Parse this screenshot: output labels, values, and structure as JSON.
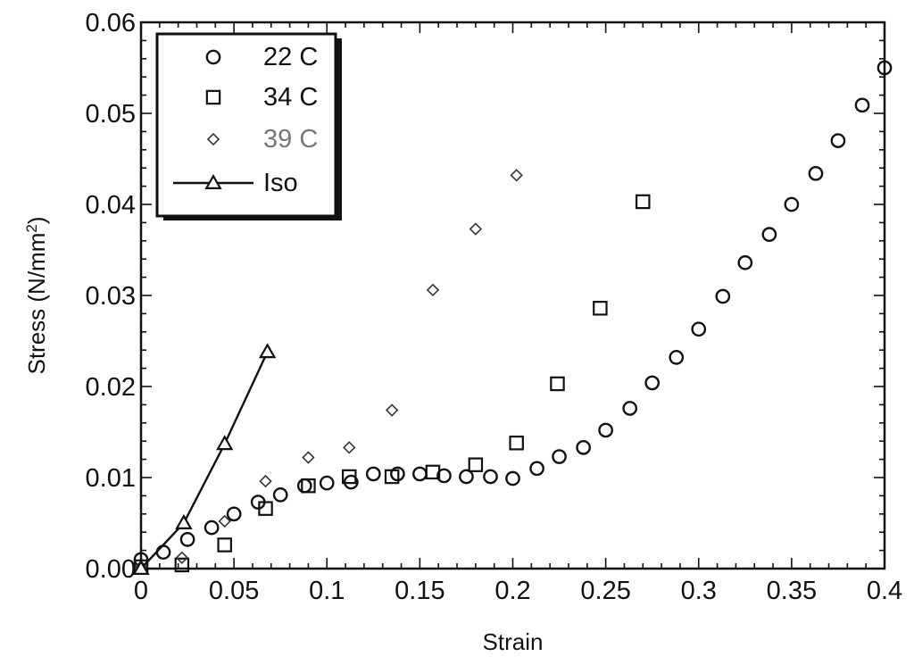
{
  "chart_data": {
    "type": "scatter",
    "title": "",
    "xlabel": "Strain",
    "ylabel_main": "Stress  (N/mm",
    "ylabel_sup": "2",
    "ylabel_close": ")",
    "xlim": [
      0,
      0.4
    ],
    "ylim": [
      0,
      0.06
    ],
    "x_ticks": [
      0,
      0.05,
      0.1,
      0.15,
      0.2,
      0.25,
      0.3,
      0.35,
      0.4
    ],
    "x_tick_labels": [
      "0",
      "0.05",
      "0.1",
      "0.15",
      "0.2",
      "0.25",
      "0.3",
      "0.35",
      "0.4"
    ],
    "y_ticks": [
      0,
      0.01,
      0.02,
      0.03,
      0.04,
      0.05,
      0.06
    ],
    "y_tick_labels": [
      "0.00",
      "0.01",
      "0.02",
      "0.03",
      "0.04",
      "0.05",
      "0.06"
    ],
    "grid": false,
    "legend_position": "top-left",
    "series": [
      {
        "name": "22 C",
        "marker": "circle",
        "color": "#111111",
        "points": [
          [
            0.0,
            0.001
          ],
          [
            0.012,
            0.0018
          ],
          [
            0.025,
            0.0032
          ],
          [
            0.038,
            0.0045
          ],
          [
            0.05,
            0.006
          ],
          [
            0.063,
            0.0073
          ],
          [
            0.075,
            0.0081
          ],
          [
            0.088,
            0.0091
          ],
          [
            0.1,
            0.0094
          ],
          [
            0.113,
            0.0095
          ],
          [
            0.125,
            0.0104
          ],
          [
            0.138,
            0.0104
          ],
          [
            0.15,
            0.0104
          ],
          [
            0.163,
            0.0102
          ],
          [
            0.175,
            0.0101
          ],
          [
            0.188,
            0.0101
          ],
          [
            0.2,
            0.0099
          ],
          [
            0.213,
            0.011
          ],
          [
            0.225,
            0.0123
          ],
          [
            0.238,
            0.0133
          ],
          [
            0.25,
            0.0152
          ],
          [
            0.263,
            0.0176
          ],
          [
            0.275,
            0.0204
          ],
          [
            0.288,
            0.0232
          ],
          [
            0.3,
            0.0263
          ],
          [
            0.313,
            0.0299
          ],
          [
            0.325,
            0.0336
          ],
          [
            0.338,
            0.0367
          ],
          [
            0.35,
            0.04
          ],
          [
            0.363,
            0.0434
          ],
          [
            0.375,
            0.047
          ],
          [
            0.388,
            0.0509
          ],
          [
            0.4,
            0.055
          ]
        ]
      },
      {
        "name": "34 C",
        "marker": "square",
        "color": "#111111",
        "points": [
          [
            0.0,
            0.0002
          ],
          [
            0.022,
            0.0004
          ],
          [
            0.045,
            0.0026
          ],
          [
            0.067,
            0.0066
          ],
          [
            0.09,
            0.0091
          ],
          [
            0.112,
            0.0101
          ],
          [
            0.135,
            0.0101
          ],
          [
            0.157,
            0.0106
          ],
          [
            0.18,
            0.0114
          ],
          [
            0.202,
            0.0138
          ],
          [
            0.224,
            0.0203
          ],
          [
            0.247,
            0.0286
          ],
          [
            0.27,
            0.0403
          ]
        ]
      },
      {
        "name": "39 C",
        "marker": "diamond",
        "color": "#111111",
        "points": [
          [
            0.0,
            0.0002
          ],
          [
            0.022,
            0.0012
          ],
          [
            0.045,
            0.0052
          ],
          [
            0.067,
            0.0096
          ],
          [
            0.09,
            0.0122
          ],
          [
            0.112,
            0.0133
          ],
          [
            0.135,
            0.0174
          ],
          [
            0.157,
            0.0306
          ],
          [
            0.18,
            0.0373
          ],
          [
            0.202,
            0.0432
          ]
        ]
      },
      {
        "name": "Iso",
        "marker": "triangle",
        "line": true,
        "color": "#111111",
        "points": [
          [
            0.0,
            0.0
          ],
          [
            0.023,
            0.005
          ],
          [
            0.045,
            0.0137
          ],
          [
            0.068,
            0.0238
          ]
        ]
      }
    ]
  }
}
